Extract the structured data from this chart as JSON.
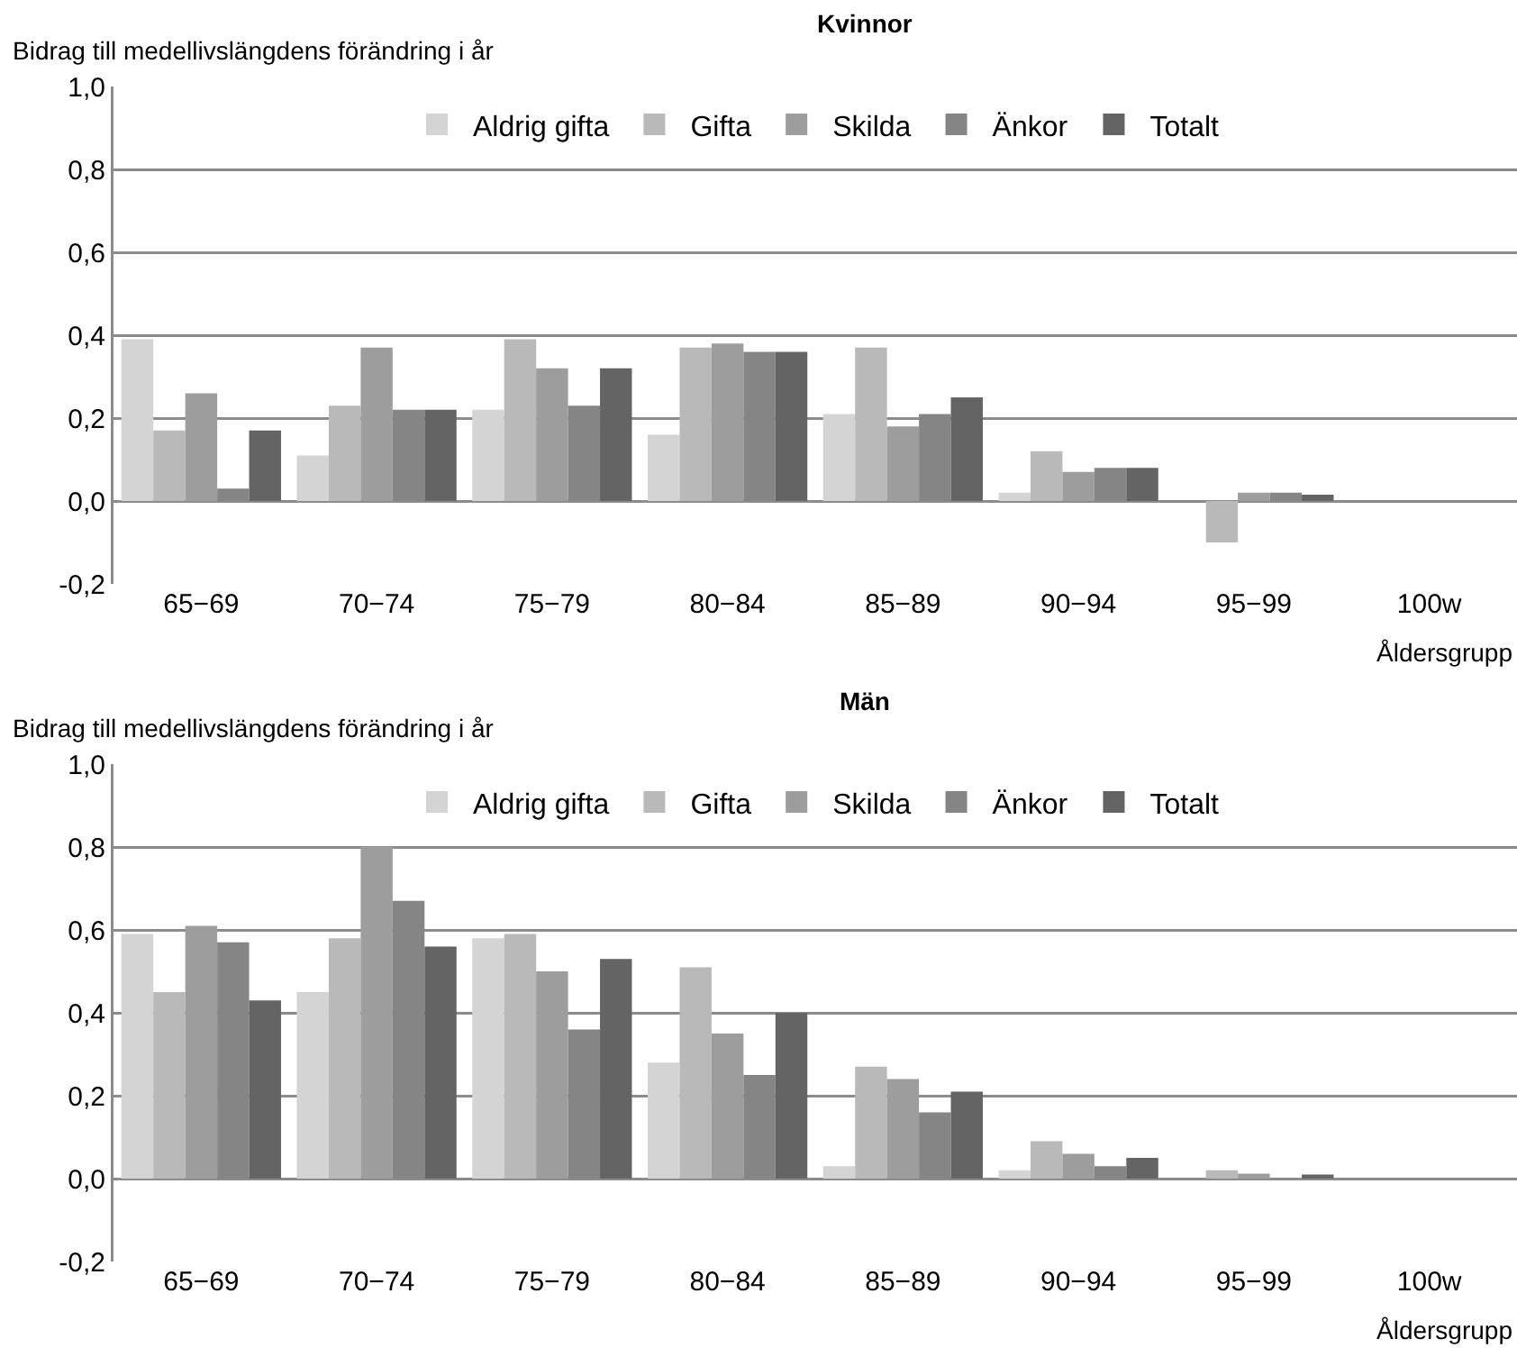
{
  "chart_data": [
    {
      "type": "bar",
      "title": "Kvinnor",
      "ylabel": "Bidrag till medellivslängdens förändring i år",
      "xlabel": "Åldersgrupp",
      "categories": [
        "65−69",
        "70−74",
        "75−79",
        "80−84",
        "85−89",
        "90−94",
        "95−99",
        "100w"
      ],
      "series": [
        {
          "name": "Aldrig gifta",
          "color": "#d4d4d4",
          "values": [
            0.39,
            0.11,
            0.22,
            0.16,
            0.21,
            0.02,
            0,
            0
          ]
        },
        {
          "name": "Gifta",
          "color": "#b9b9b9",
          "values": [
            0.17,
            0.23,
            0.39,
            0.37,
            0.37,
            0.12,
            -0.1,
            0
          ]
        },
        {
          "name": "Skilda",
          "color": "#9d9d9d",
          "values": [
            0.26,
            0.37,
            0.32,
            0.38,
            0.18,
            0.07,
            0.02,
            0
          ]
        },
        {
          "name": "Änkor",
          "color": "#858585",
          "values": [
            0.03,
            0.22,
            0.23,
            0.36,
            0.21,
            0.08,
            0.02,
            0
          ]
        },
        {
          "name": "Totalt",
          "color": "#646464",
          "values": [
            0.17,
            0.22,
            0.32,
            0.36,
            0.25,
            0.08,
            0.015,
            0
          ]
        }
      ],
      "ylim": [
        -0.2,
        1.0
      ],
      "yticks": [
        {
          "value": -0.2,
          "label": "-0,2"
        },
        {
          "value": 0,
          "label": "0,0"
        },
        {
          "value": 0.2,
          "label": "0,2"
        },
        {
          "value": 0.4,
          "label": "0,4"
        },
        {
          "value": 0.6,
          "label": "0,6"
        },
        {
          "value": 0.8,
          "label": "0,8"
        },
        {
          "value": 1.0,
          "label": "1,0"
        }
      ],
      "grid": "y",
      "legend": "top"
    },
    {
      "type": "bar",
      "title": "Män",
      "ylabel": "Bidrag till medellivslängdens förändring i år",
      "xlabel": "Åldersgrupp",
      "categories": [
        "65−69",
        "70−74",
        "75−79",
        "80−84",
        "85−89",
        "90−94",
        "95−99",
        "100w"
      ],
      "series": [
        {
          "name": "Aldrig gifta",
          "color": "#d4d4d4",
          "values": [
            0.59,
            0.45,
            0.58,
            0.28,
            0.03,
            0.02,
            null,
            0
          ]
        },
        {
          "name": "Gifta",
          "color": "#b9b9b9",
          "values": [
            0.45,
            0.58,
            0.59,
            0.51,
            0.27,
            0.09,
            0.02,
            0
          ]
        },
        {
          "name": "Skilda",
          "color": "#9d9d9d",
          "values": [
            0.61,
            0.8,
            0.5,
            0.35,
            0.24,
            0.06,
            0.012,
            0
          ]
        },
        {
          "name": "Änkor",
          "color": "#858585",
          "values": [
            0.57,
            0.67,
            0.36,
            0.25,
            0.16,
            0.03,
            0,
            0
          ]
        },
        {
          "name": "Totalt",
          "color": "#646464",
          "values": [
            0.43,
            0.56,
            0.53,
            0.4,
            0.21,
            0.05,
            0.01,
            0
          ]
        }
      ],
      "ylim": [
        -0.2,
        1.0
      ],
      "yticks": [
        {
          "value": -0.2,
          "label": "-0,2"
        },
        {
          "value": 0,
          "label": "0,0"
        },
        {
          "value": 0.2,
          "label": "0,2"
        },
        {
          "value": 0.4,
          "label": "0,4"
        },
        {
          "value": 0.6,
          "label": "0,6"
        },
        {
          "value": 0.8,
          "label": "0,8"
        },
        {
          "value": 1.0,
          "label": "1,0"
        }
      ],
      "grid": "y",
      "legend": "top"
    }
  ]
}
